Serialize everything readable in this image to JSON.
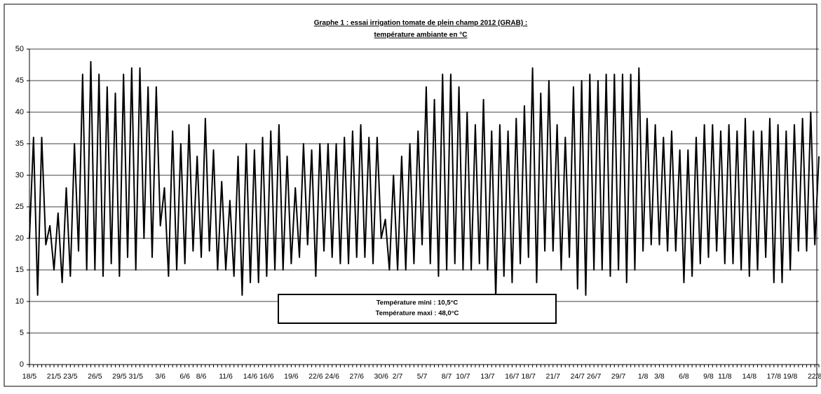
{
  "chart_data": {
    "type": "line",
    "title": "Graphe 1 : essai irrigation tomate de plein champ 2012 (GRAB) :",
    "subtitle": "température ambiante en °C",
    "annotations": [
      "Température mini : 10,5°C",
      "Température maxi : 48,0°C"
    ],
    "color": "#000000",
    "grid": true,
    "ylim": [
      0,
      50
    ],
    "yticks": [
      0,
      5,
      10,
      15,
      20,
      25,
      30,
      35,
      40,
      45,
      50
    ],
    "categories": [
      "18/5",
      null,
      null,
      null,
      null,
      null,
      "21/5",
      null,
      null,
      null,
      "23/5",
      null,
      null,
      null,
      null,
      null,
      "26/5",
      null,
      null,
      null,
      null,
      null,
      "29/5",
      null,
      null,
      null,
      "31/5",
      null,
      null,
      null,
      null,
      null,
      "3/6",
      null,
      null,
      null,
      null,
      null,
      "6/6",
      null,
      null,
      null,
      "8/6",
      null,
      null,
      null,
      null,
      null,
      "11/6",
      null,
      null,
      null,
      null,
      null,
      "14/6",
      null,
      null,
      null,
      "16/6",
      null,
      null,
      null,
      null,
      null,
      "19/6",
      null,
      null,
      null,
      null,
      null,
      "22/6",
      null,
      null,
      null,
      "24/6",
      null,
      null,
      null,
      null,
      null,
      "27/6",
      null,
      null,
      null,
      null,
      null,
      "30/6",
      null,
      null,
      null,
      "2/7",
      null,
      null,
      null,
      null,
      null,
      "5/7",
      null,
      null,
      null,
      null,
      null,
      "8/7",
      null,
      null,
      null,
      "10/7",
      null,
      null,
      null,
      null,
      null,
      "13/7",
      null,
      null,
      null,
      null,
      null,
      "16/7",
      null,
      null,
      null,
      "18/7",
      null,
      null,
      null,
      null,
      null,
      "21/7",
      null,
      null,
      null,
      null,
      null,
      "24/7",
      null,
      null,
      null,
      "26/7",
      null,
      null,
      null,
      null,
      null,
      "29/7",
      null,
      null,
      null,
      null,
      null,
      "1/8",
      null,
      null,
      null,
      "3/8",
      null,
      null,
      null,
      null,
      null,
      "6/8",
      null,
      null,
      null,
      null,
      null,
      "9/8",
      null,
      null,
      null,
      "11/8",
      null,
      null,
      null,
      null,
      null,
      "14/8",
      null,
      null,
      null,
      null,
      null,
      "17/8",
      null,
      null,
      null,
      "19/8",
      null,
      null,
      null,
      null,
      null,
      "22/8",
      null
    ],
    "values": [
      20,
      36,
      11,
      36,
      19,
      22,
      15,
      24,
      13,
      28,
      14,
      35,
      18,
      46,
      15,
      48,
      15,
      46,
      14,
      44,
      16,
      43,
      14,
      46,
      17,
      47,
      15,
      47,
      20,
      44,
      17,
      44,
      22,
      28,
      14,
      37,
      15,
      35,
      16,
      38,
      18,
      33,
      17,
      39,
      18,
      34,
      15,
      29,
      15,
      26,
      14,
      33,
      11,
      35,
      13,
      34,
      13,
      36,
      14,
      37,
      15,
      38,
      15,
      33,
      16,
      28,
      17,
      35,
      19,
      34,
      14,
      35,
      18,
      35,
      17,
      35,
      16,
      36,
      16,
      37,
      17,
      38,
      17,
      36,
      16,
      36,
      20,
      23,
      15,
      30,
      15,
      33,
      15,
      35,
      16,
      37,
      19,
      44,
      16,
      42,
      14,
      46,
      15,
      46,
      16,
      44,
      15,
      40,
      15,
      38,
      16,
      42,
      15,
      37,
      10.5,
      38,
      14,
      37,
      13,
      39,
      16,
      41,
      17,
      47,
      13,
      43,
      18,
      45,
      18,
      38,
      15,
      36,
      17,
      44,
      12,
      45,
      11,
      46,
      15,
      45,
      15,
      46,
      14,
      46,
      15,
      46,
      13,
      46,
      15,
      47,
      18,
      39,
      19,
      38,
      19,
      36,
      18,
      37,
      18,
      34,
      13,
      34,
      14,
      36,
      16,
      38,
      17,
      38,
      18,
      37,
      16,
      38,
      16,
      37,
      15,
      39,
      14,
      37,
      15,
      37,
      17,
      39,
      13,
      38,
      13,
      37,
      15,
      38,
      18,
      39,
      18,
      40,
      19,
      33
    ]
  }
}
